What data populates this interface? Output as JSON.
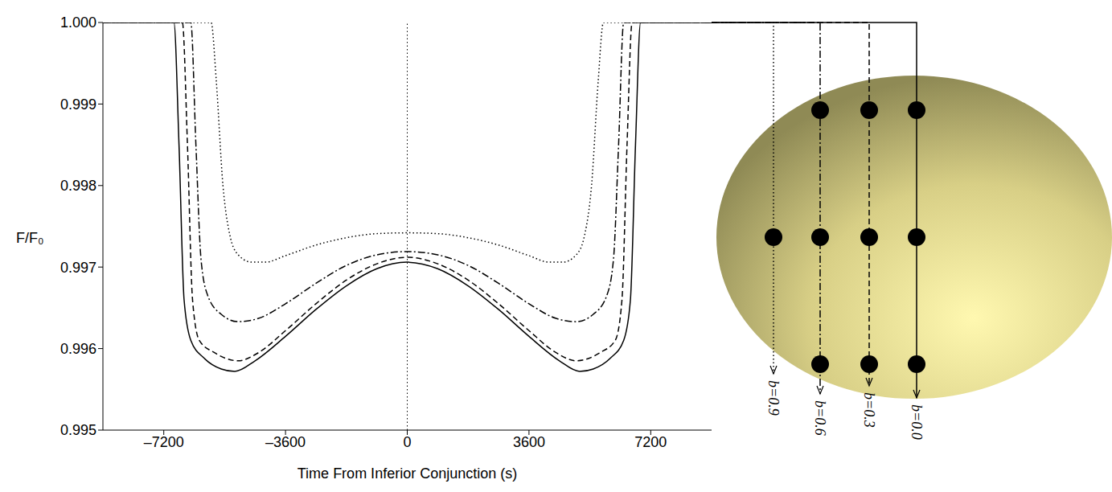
{
  "chart_data": {
    "type": "line",
    "xlabel": "Time From Inferior Conjunction (s)",
    "ylabel": "F/F₀",
    "xlim": [
      -9000,
      9000
    ],
    "xticks": [
      {
        "value": -7200,
        "label": "–7200"
      },
      {
        "value": -3600,
        "label": "–3600"
      },
      0,
      3600,
      7200
    ],
    "ylim": [
      0.995,
      1.0
    ],
    "yticks": [
      0.995,
      0.996,
      0.997,
      0.998,
      0.999,
      {
        "value": 1.0,
        "label": "1.000"
      }
    ],
    "reference_lines": [
      {
        "x": 0
      }
    ],
    "series": [
      {
        "name": "b=0.0",
        "color": "#000000",
        "line_style": "solid",
        "x": [
          -9000,
          -6900,
          -6750,
          -6600,
          -6400,
          -6000,
          -5500,
          -5100,
          -4500,
          -3600,
          -2700,
          -1800,
          -900,
          0,
          900,
          1800,
          2700,
          3600,
          4500,
          5100,
          5500,
          6000,
          6400,
          6600,
          6750,
          6900,
          9000
        ],
        "values": [
          1.0,
          1.0,
          0.9985,
          0.9966,
          0.9961,
          0.99588,
          0.99575,
          0.99572,
          0.99585,
          0.99615,
          0.99648,
          0.99677,
          0.99698,
          0.99706,
          0.99698,
          0.99677,
          0.99648,
          0.99615,
          0.99585,
          0.99572,
          0.99575,
          0.99588,
          0.9961,
          0.9966,
          0.9985,
          1.0,
          1.0
        ]
      },
      {
        "name": "b=0.3",
        "color": "#000000",
        "line_style": "dashed",
        "x": [
          -9000,
          -6650,
          -6500,
          -6350,
          -6150,
          -5700,
          -5000,
          -4400,
          -3600,
          -2700,
          -1800,
          -900,
          0,
          900,
          1800,
          2700,
          3600,
          4400,
          5000,
          5700,
          6150,
          6350,
          6500,
          6650,
          9000
        ],
        "values": [
          1.0,
          1.0,
          0.9985,
          0.9966,
          0.9961,
          0.99595,
          0.99585,
          0.99595,
          0.99622,
          0.99655,
          0.99684,
          0.99704,
          0.99712,
          0.99704,
          0.99684,
          0.99655,
          0.99622,
          0.99595,
          0.99585,
          0.99595,
          0.9961,
          0.9966,
          0.9985,
          1.0,
          1.0
        ]
      },
      {
        "name": "b=0.6",
        "color": "#000000",
        "line_style": "dashdot",
        "x": [
          -9000,
          -6400,
          -6250,
          -6100,
          -5900,
          -5500,
          -5000,
          -4400,
          -3600,
          -2700,
          -1800,
          -900,
          0,
          900,
          1800,
          2700,
          3600,
          4400,
          5000,
          5500,
          5900,
          6100,
          6250,
          6400,
          9000
        ],
        "values": [
          1.0,
          1.0,
          0.9985,
          0.9971,
          0.99665,
          0.99642,
          0.99633,
          0.99637,
          0.99655,
          0.9968,
          0.99702,
          0.99715,
          0.99719,
          0.99715,
          0.99702,
          0.9968,
          0.99655,
          0.99637,
          0.99633,
          0.99642,
          0.99665,
          0.9971,
          0.9985,
          1.0,
          1.0
        ]
      },
      {
        "name": "b=0.9",
        "color": "#000000",
        "line_style": "dotted",
        "x": [
          -9000,
          -5800,
          -5650,
          -5450,
          -5250,
          -5000,
          -4600,
          -4200,
          -3600,
          -2700,
          -1800,
          -900,
          0,
          900,
          1800,
          2700,
          3600,
          4200,
          4600,
          5000,
          5250,
          5450,
          5650,
          5800,
          9000
        ],
        "values": [
          1.0,
          1.0,
          0.9993,
          0.998,
          0.9974,
          0.99715,
          0.99706,
          0.99706,
          0.99714,
          0.99727,
          0.99736,
          0.99741,
          0.99742,
          0.99741,
          0.99736,
          0.99727,
          0.99714,
          0.99706,
          0.99706,
          0.99715,
          0.9974,
          0.998,
          0.9993,
          1.0,
          1.0
        ]
      }
    ]
  }
}
